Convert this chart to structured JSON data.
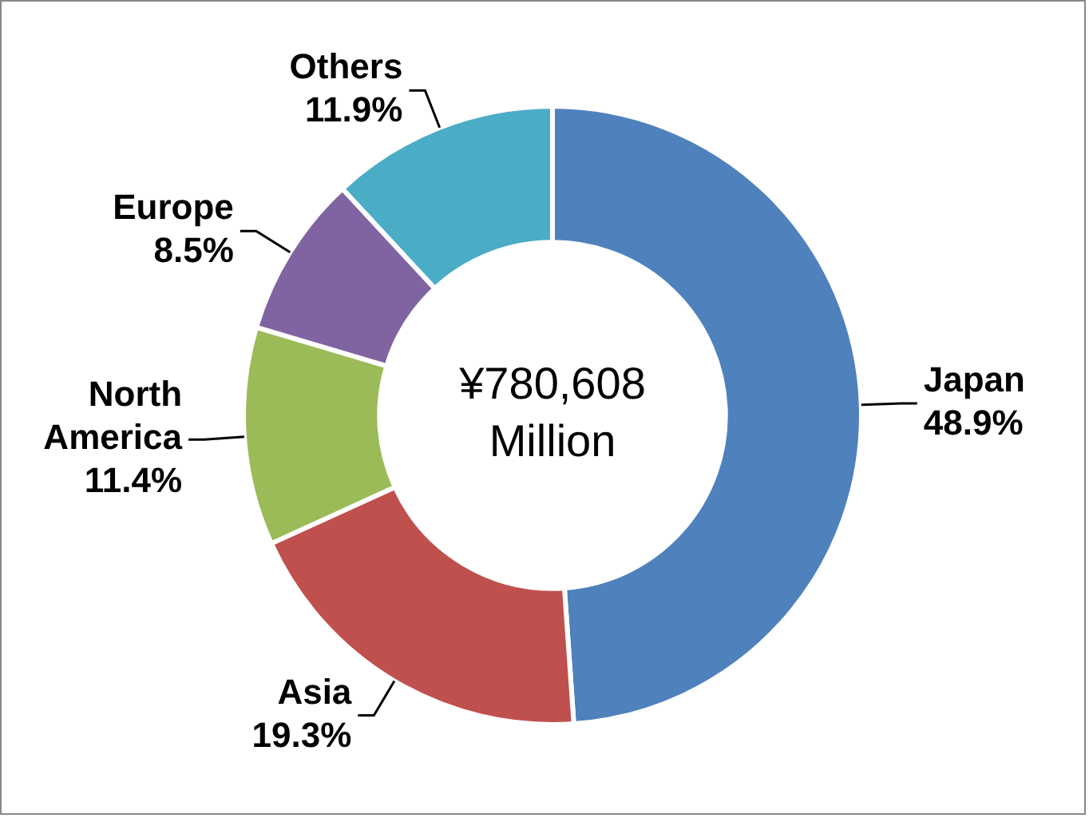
{
  "chart_data": {
    "type": "donut",
    "categories": [
      "Japan",
      "Asia",
      "North America",
      "Europe",
      "Others"
    ],
    "values": [
      48.9,
      19.3,
      11.4,
      8.5,
      11.9
    ],
    "value_labels": [
      "48.9%",
      "19.3%",
      "11.4%",
      "8.5%",
      "11.9%"
    ],
    "colors": [
      "#4f81bd",
      "#c0504d",
      "#9bbb59",
      "#8064a2",
      "#4bacc6"
    ],
    "annotations": [
      "¥780,608 Million"
    ],
    "legend": false
  }
}
